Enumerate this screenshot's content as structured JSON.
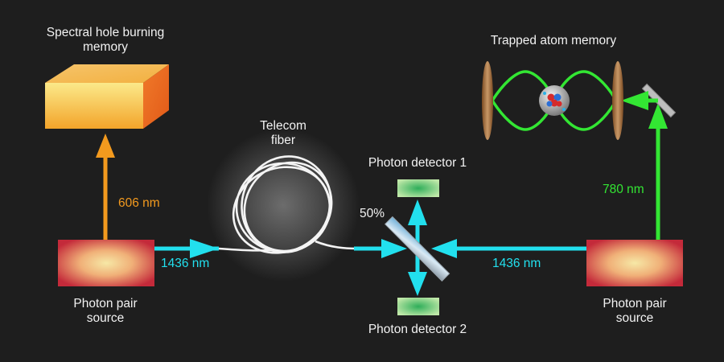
{
  "labels": {
    "memory_left": [
      "Spectral hole burning",
      "memory"
    ],
    "memory_right": "Trapped atom memory",
    "fiber": [
      "Telecom",
      "fiber"
    ],
    "detector_1": "Photon detector 1",
    "detector_2": "Photon detector 2",
    "splitter": "50%",
    "source_left": [
      "Photon pair",
      "source"
    ],
    "source_right": [
      "Photon pair",
      "source"
    ]
  },
  "wavelengths": {
    "left_up": "606 nm",
    "left_telecom": "1436 nm",
    "right_telecom": "1436 nm",
    "right_up": "780 nm"
  },
  "colors": {
    "background": "#1e1e1e",
    "cyan_beam": "#22e0ee",
    "orange_beam": "#f39a1e",
    "green_beam": "#33e633",
    "source_red": "#c8283a",
    "detector_green": "#4cc873"
  }
}
